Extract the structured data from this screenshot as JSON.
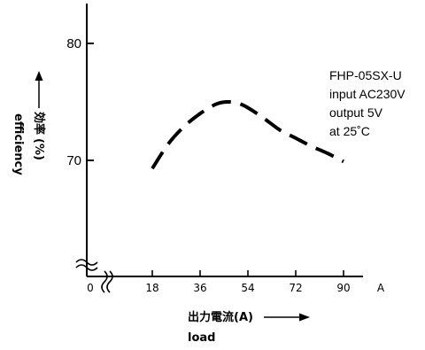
{
  "chart_data": {
    "type": "line",
    "series": [
      {
        "x": [
          18,
          24,
          30,
          36,
          42,
          46,
          50,
          54,
          60,
          66,
          72,
          78,
          84,
          90
        ],
        "values": [
          69.3,
          71.4,
          72.9,
          74.0,
          74.8,
          75.0,
          74.9,
          74.5,
          73.6,
          72.6,
          71.9,
          71.2,
          70.6,
          69.9
        ]
      }
    ],
    "x_ticks": [
      "0",
      "18",
      "36",
      "54",
      "72",
      "90"
    ],
    "x_unit": "A",
    "xlabel_jp": "出力電流(A)",
    "xlabel_en": "load",
    "y_ticks": [
      "80",
      "70"
    ],
    "ylabel_jp": "効率",
    "ylabel_unit": "(%)",
    "ylabel_en": "efficiency",
    "ylim": [
      64,
      86
    ],
    "xlim": [
      0,
      96
    ],
    "annotations": [
      "FHP-05SX-U",
      "input AC230V",
      "output 5V",
      "at 25˚C"
    ],
    "line_style": "dashed",
    "axis_break": true,
    "grid": false
  }
}
